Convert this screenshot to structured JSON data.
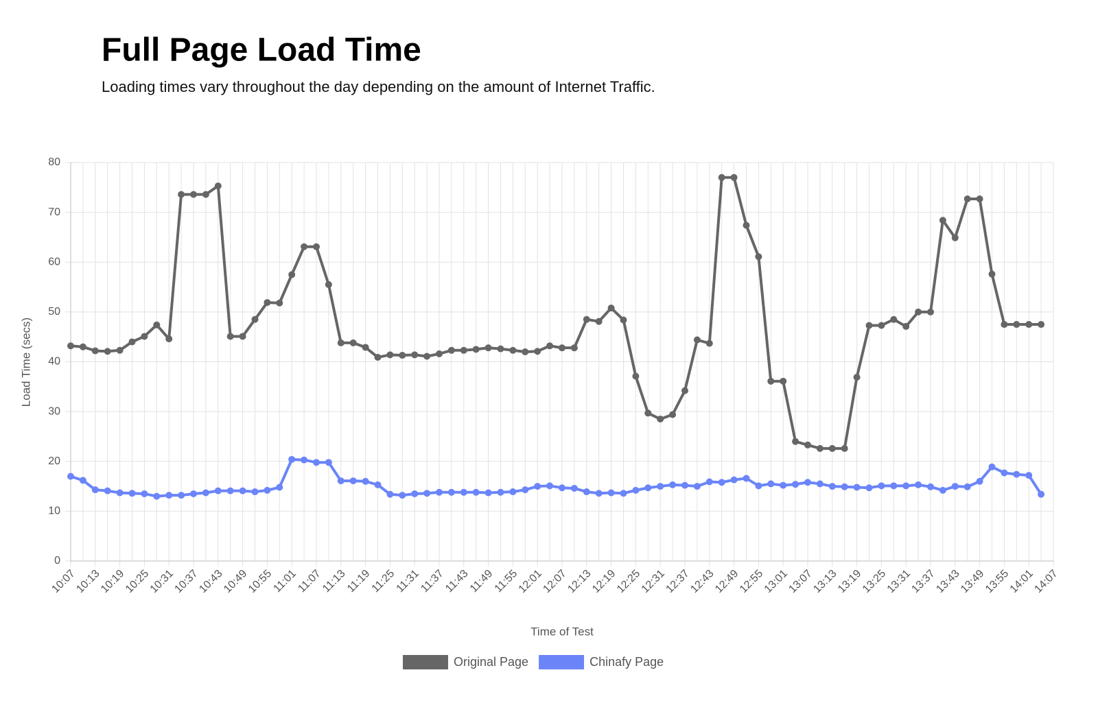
{
  "chart_data": {
    "type": "line",
    "title": "Full Page Load Time",
    "subtitle": "Loading times vary throughout the day depending on the amount of Internet Traffic.",
    "x_label": "Time of Test",
    "y_label": "Load Time (secs)",
    "categories": [
      "10:07",
      null,
      "10:13",
      null,
      "10:19",
      null,
      "10:25",
      null,
      "10:31",
      null,
      "10:37",
      null,
      "10:43",
      null,
      "10:49",
      null,
      "10:55",
      null,
      "11:01",
      null,
      "11:07",
      null,
      "11:13",
      null,
      "11:19",
      null,
      "11:25",
      null,
      "11:31",
      null,
      "11:37",
      null,
      "11:43",
      null,
      "11:49",
      null,
      "11:55",
      null,
      "12:01",
      null,
      "12:07",
      null,
      "12:13",
      null,
      "12:19",
      null,
      "12:25",
      null,
      "12:31",
      null,
      "12:37",
      null,
      "12:43",
      null,
      "12:49",
      null,
      "12:55",
      null,
      "13:01",
      null,
      "13:07",
      null,
      "13:13",
      null,
      "13:19",
      null,
      "13:25",
      null,
      "13:31",
      null,
      "13:37",
      null,
      "13:43",
      null,
      "13:49",
      null,
      "13:55",
      null,
      "14:01",
      null,
      "14:07"
    ],
    "series": [
      {
        "name": "Original Page",
        "color": "#666666",
        "values": [
          43.2,
          43.0,
          42.2,
          42.1,
          42.3,
          44.0,
          45.1,
          47.4,
          44.6,
          73.6,
          73.6,
          73.6,
          75.3,
          45.1,
          45.1,
          48.5,
          51.9,
          51.8,
          57.5,
          63.1,
          63.1,
          55.5,
          43.8,
          43.8,
          42.9,
          40.9,
          41.4,
          41.3,
          41.4,
          41.1,
          41.6,
          42.3,
          42.3,
          42.5,
          42.8,
          42.6,
          42.3,
          42.0,
          42.1,
          43.2,
          42.8,
          42.8,
          48.5,
          48.1,
          50.8,
          48.4,
          37.1,
          29.7,
          28.5,
          29.4,
          34.2,
          44.4,
          43.7,
          77.0,
          77.0,
          67.4,
          61.1,
          36.1,
          36.1,
          24.0,
          23.3,
          22.6,
          22.6,
          22.6,
          36.9,
          47.3,
          47.3,
          48.5,
          47.1,
          50.0,
          50.0,
          68.4,
          64.9,
          72.7,
          72.7,
          57.6,
          47.5,
          47.5,
          47.5,
          47.5,
          null
        ]
      },
      {
        "name": "Chinafy Page",
        "color": "#6b85f8",
        "values": [
          17.0,
          16.2,
          14.3,
          14.1,
          13.7,
          13.6,
          13.5,
          13.0,
          13.2,
          13.2,
          13.5,
          13.7,
          14.1,
          14.1,
          14.1,
          13.9,
          14.2,
          14.8,
          20.4,
          20.3,
          19.8,
          19.8,
          16.1,
          16.1,
          16.0,
          15.3,
          13.4,
          13.2,
          13.5,
          13.6,
          13.8,
          13.8,
          13.8,
          13.8,
          13.7,
          13.8,
          13.9,
          14.3,
          15.0,
          15.1,
          14.7,
          14.6,
          13.9,
          13.6,
          13.7,
          13.6,
          14.2,
          14.7,
          15.0,
          15.3,
          15.2,
          15.0,
          15.9,
          15.8,
          16.3,
          16.6,
          15.1,
          15.5,
          15.2,
          15.4,
          15.8,
          15.5,
          15.0,
          14.9,
          14.8,
          14.7,
          15.1,
          15.1,
          15.1,
          15.3,
          14.9,
          14.2,
          15.0,
          14.9,
          16.0,
          18.9,
          17.7,
          17.4,
          17.2,
          13.4,
          null
        ]
      }
    ],
    "ylim": [
      0,
      80
    ],
    "yticks": [
      0,
      10,
      20,
      30,
      40,
      50,
      60,
      70,
      80
    ],
    "grid": true,
    "legend": "bottom"
  }
}
